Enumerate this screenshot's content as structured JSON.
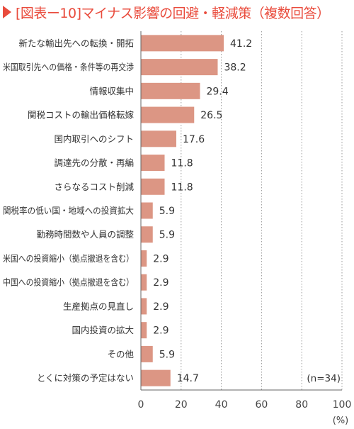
{
  "title": "[図表ー10]マイナス影響の回避・軽減策（複数回答）",
  "accent_color": "#e94b3c",
  "bar_color": "#dc9684",
  "chart_data": {
    "type": "bar",
    "orientation": "horizontal",
    "title": "[図表ー10]マイナス影響の回避・軽減策（複数回答）",
    "categories": [
      "新たな輸出先への転換・開拓",
      "米国取引先への価格・条件等の再交渉",
      "情報収集中",
      "関税コストの輸出価格転嫁",
      "国内取引へのシフト",
      "調達先の分散・再編",
      "さらなるコスト削減",
      "関税率の低い国・地域への投資拡大",
      "勤務時間数や人員の調整",
      "米国への投資縮小（拠点撤退を含む）",
      "中国への投資縮小（拠点撤退を含む）",
      "生産拠点の見直し",
      "国内投資の拡大",
      "その他",
      "とくに対策の予定はない"
    ],
    "values": [
      41.2,
      38.2,
      29.4,
      26.5,
      17.6,
      11.8,
      11.8,
      5.9,
      5.9,
      2.9,
      2.9,
      2.9,
      2.9,
      5.9,
      14.7
    ],
    "value_labels": [
      "41.2",
      "38.2",
      "29.4",
      "26.5",
      "17.6",
      "11.8",
      "11.8",
      "5.9",
      "5.9",
      "2.9",
      "2.9",
      "2.9",
      "2.9",
      "5.9",
      "14.7"
    ],
    "xlim": [
      0,
      100
    ],
    "x_ticks": [
      "0",
      "20",
      "40",
      "60",
      "80",
      "100"
    ],
    "x_unit": "(%)",
    "note": "(n=34)",
    "grid": "vertical-dotted",
    "legend": "none"
  }
}
